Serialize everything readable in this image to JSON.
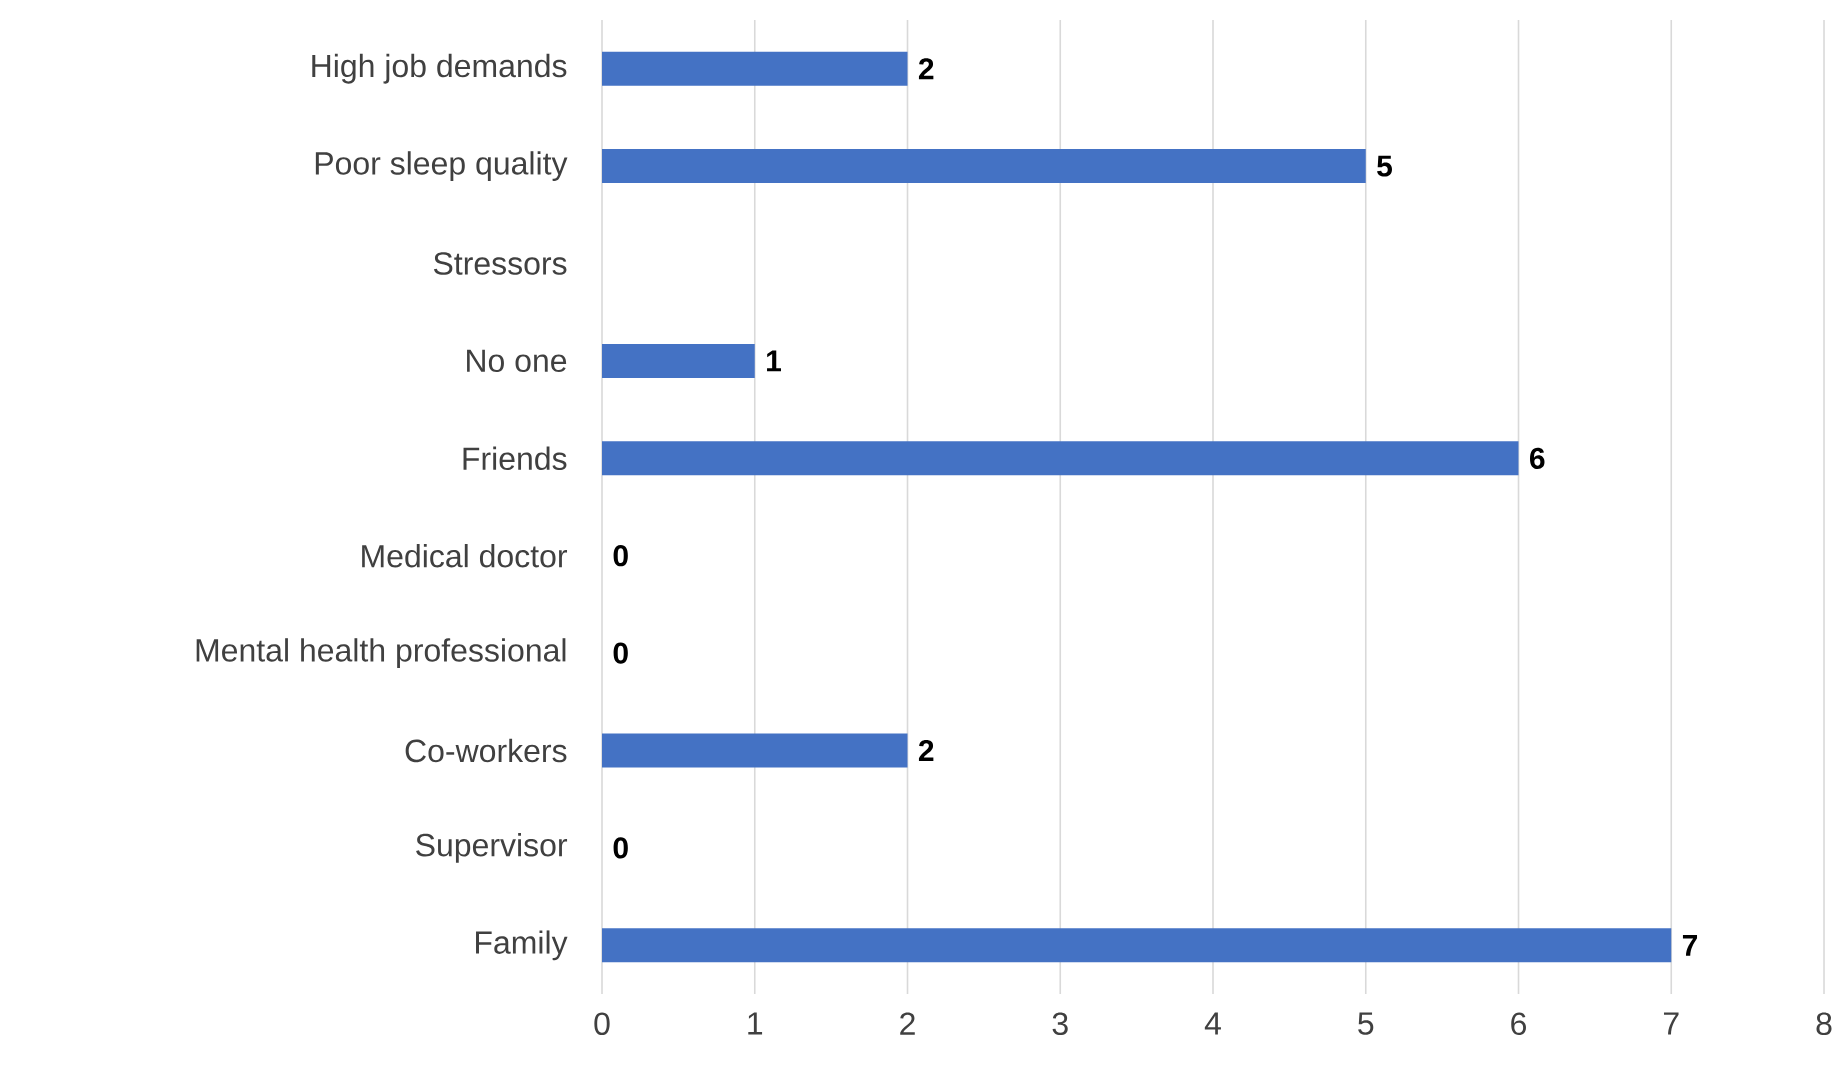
{
  "chart_data": {
    "type": "bar",
    "orientation": "horizontal",
    "categories": [
      "High job demands",
      "Poor sleep quality",
      "Stressors",
      "No one",
      "Friends",
      "Medical doctor",
      "Mental health professional",
      "Co-workers",
      "Supervisor",
      "Family"
    ],
    "values": [
      2,
      5,
      null,
      1,
      6,
      0,
      0,
      2,
      0,
      7
    ],
    "color": "#4472c4",
    "xlim": [
      0,
      8
    ],
    "xticks": [
      0,
      1,
      2,
      3,
      4,
      5,
      6,
      7,
      8
    ],
    "grid": "x",
    "data_labels": true
  }
}
